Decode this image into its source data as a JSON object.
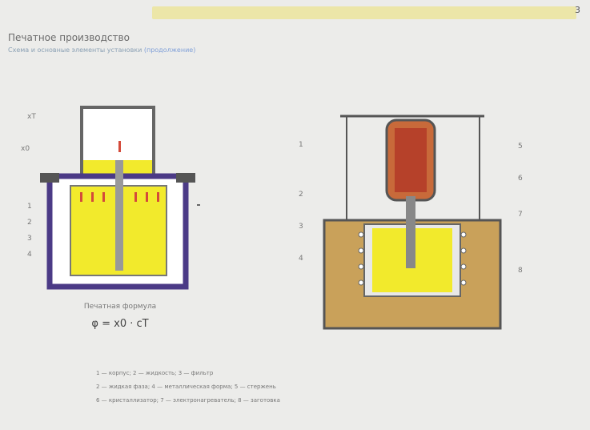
{
  "header": {
    "page_number": "3"
  },
  "slide": {
    "title": "Печатное производство",
    "subtitle": "Схема и основные элементы установки",
    "subtitle_link": "(продолжение)"
  },
  "figure_left": {
    "labels": [
      "xT",
      "x0",
      "1",
      "2",
      "3",
      "4"
    ],
    "caption": "Печатная формула",
    "formula": "φ = x0 · cT"
  },
  "figure_right": {
    "labels": [
      "1",
      "2",
      "3",
      "4",
      "5",
      "6",
      "7",
      "8"
    ]
  },
  "legend": [
    "1 — корпус; 2 — жидкость; 3 — фильтр",
    "2 — жидкая фаза; 4 — металлическая форма; 5 — стержень",
    "6 — кристаллизатор; 7 — электронагреватель; 8 — заготовка"
  ],
  "colors": {
    "melt_yellow": "#f2ea2c",
    "vessel_purple": "#4b3a86",
    "mold_tan": "#c9a15a",
    "rod_red": "#b6412a"
  }
}
